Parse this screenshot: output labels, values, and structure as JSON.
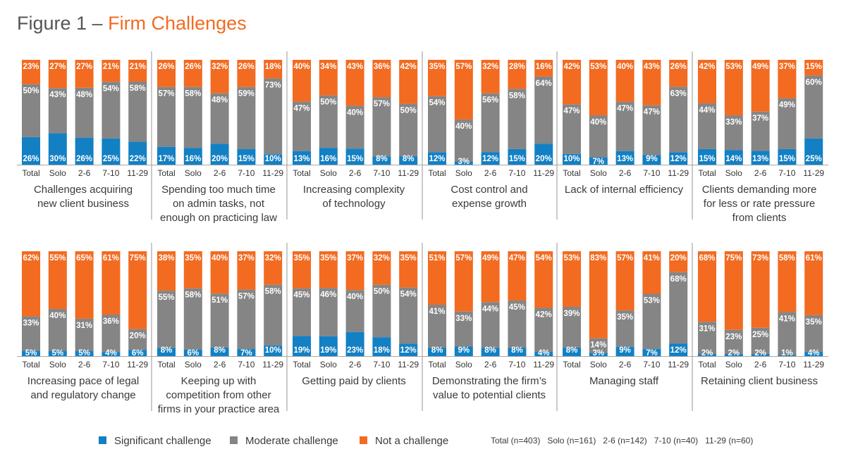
{
  "figure_title": {
    "lead": "Figure 1 – ",
    "accent": "Firm Challenges"
  },
  "colors": {
    "significant": "#1380c3",
    "moderate": "#858585",
    "not": "#f26b21",
    "divider": "#a8a8a8"
  },
  "legend": [
    {
      "key": "significant",
      "label": "Significant challenge"
    },
    {
      "key": "moderate",
      "label": "Moderate challenge"
    },
    {
      "key": "not",
      "label": "Not a challenge"
    }
  ],
  "sample_note": "Total (n=403)   Solo (n=161)   2-6 (n=142)   7-10 (n=40)   11-29 (n=60)",
  "chart_data": {
    "type": "bar",
    "stacked": true,
    "percent_scale": true,
    "categories": [
      "Total",
      "Solo",
      "2-6",
      "7-10",
      "11-29"
    ],
    "panels": [
      {
        "title": [
          "Challenges acquiring",
          "new client business"
        ],
        "significant": [
          26,
          30,
          26,
          25,
          22
        ],
        "moderate": [
          50,
          43,
          48,
          54,
          58
        ],
        "not": [
          23,
          27,
          27,
          21,
          21
        ]
      },
      {
        "title": [
          "Spending too much time",
          "on admin tasks, not",
          "enough on practicing law"
        ],
        "significant": [
          17,
          16,
          20,
          15,
          10
        ],
        "moderate": [
          57,
          58,
          48,
          59,
          73
        ],
        "not": [
          26,
          26,
          32,
          26,
          18
        ]
      },
      {
        "title": [
          "Increasing complexity",
          "of technology"
        ],
        "significant": [
          13,
          16,
          15,
          8,
          8
        ],
        "moderate": [
          47,
          50,
          40,
          57,
          50
        ],
        "not": [
          40,
          34,
          43,
          36,
          42
        ]
      },
      {
        "title": [
          "Cost control and",
          "expense growth"
        ],
        "significant": [
          12,
          3,
          12,
          15,
          20
        ],
        "moderate": [
          54,
          40,
          56,
          58,
          64
        ],
        "not": [
          35,
          57,
          32,
          28,
          16
        ]
      },
      {
        "title": [
          "Lack of internal efficiency"
        ],
        "significant": [
          10,
          7,
          13,
          9,
          12
        ],
        "moderate": [
          47,
          40,
          47,
          47,
          63
        ],
        "not": [
          42,
          53,
          40,
          43,
          26
        ]
      },
      {
        "title": [
          "Clients demanding more",
          "for less or rate pressure",
          "from clients"
        ],
        "significant": [
          15,
          14,
          13,
          15,
          25
        ],
        "moderate": [
          44,
          33,
          37,
          49,
          60
        ],
        "not": [
          42,
          53,
          49,
          37,
          15
        ]
      },
      {
        "title": [
          "Increasing pace of legal",
          "and regulatory change"
        ],
        "significant": [
          5,
          5,
          5,
          4,
          6
        ],
        "moderate": [
          33,
          40,
          31,
          36,
          20
        ],
        "not": [
          62,
          55,
          65,
          61,
          75
        ]
      },
      {
        "title": [
          "Keeping up with",
          "competition from other",
          "firms in your practice area"
        ],
        "significant": [
          8,
          6,
          8,
          7,
          10
        ],
        "moderate": [
          55,
          58,
          51,
          57,
          58
        ],
        "not": [
          38,
          35,
          40,
          37,
          32
        ]
      },
      {
        "title": [
          "Getting paid by clients"
        ],
        "significant": [
          19,
          19,
          23,
          18,
          12
        ],
        "moderate": [
          45,
          46,
          40,
          50,
          54
        ],
        "not": [
          35,
          35,
          37,
          32,
          35
        ]
      },
      {
        "title": [
          "Demonstrating the firm’s",
          "value to potential clients"
        ],
        "significant": [
          8,
          9,
          8,
          8,
          4
        ],
        "moderate": [
          41,
          33,
          44,
          45,
          42
        ],
        "not": [
          51,
          57,
          49,
          47,
          54
        ]
      },
      {
        "title": [
          "Managing staff"
        ],
        "significant": [
          8,
          3,
          9,
          7,
          12
        ],
        "moderate": [
          39,
          14,
          35,
          53,
          68
        ],
        "not": [
          53,
          83,
          57,
          41,
          20
        ]
      },
      {
        "title": [
          "Retaining client business"
        ],
        "significant": [
          2,
          2,
          2,
          1,
          4
        ],
        "moderate": [
          31,
          23,
          25,
          41,
          35
        ],
        "not": [
          68,
          75,
          73,
          58,
          61
        ]
      }
    ]
  }
}
